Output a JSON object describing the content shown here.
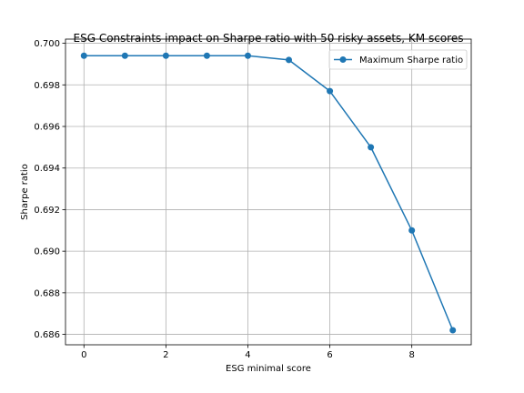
{
  "chart_data": {
    "type": "line",
    "title": "ESG Constraints impact on Sharpe ratio with 50 risky assets, KM scores",
    "xlabel": "ESG minimal score",
    "ylabel": "Sharpe ratio",
    "xlim": [
      -0.45,
      9.45
    ],
    "ylim": [
      0.6855,
      0.7002
    ],
    "x_ticks": [
      0,
      2,
      4,
      6,
      8
    ],
    "x_tick_labels": [
      "0",
      "2",
      "4",
      "6",
      "8"
    ],
    "y_ticks": [
      0.686,
      0.688,
      0.69,
      0.692,
      0.694,
      0.696,
      0.698,
      0.7
    ],
    "y_tick_labels": [
      "0.686",
      "0.688",
      "0.690",
      "0.692",
      "0.694",
      "0.696",
      "0.698",
      "0.700"
    ],
    "grid": true,
    "legend_position": "upper right",
    "series": [
      {
        "name": "Maximum Sharpe ratio",
        "color": "#1f77b4",
        "marker": "circle",
        "x": [
          0,
          1,
          2,
          3,
          4,
          5,
          6,
          7,
          8,
          9
        ],
        "y": [
          0.6994,
          0.6994,
          0.6994,
          0.6994,
          0.6994,
          0.6992,
          0.6977,
          0.695,
          0.691,
          0.6862
        ]
      }
    ]
  }
}
